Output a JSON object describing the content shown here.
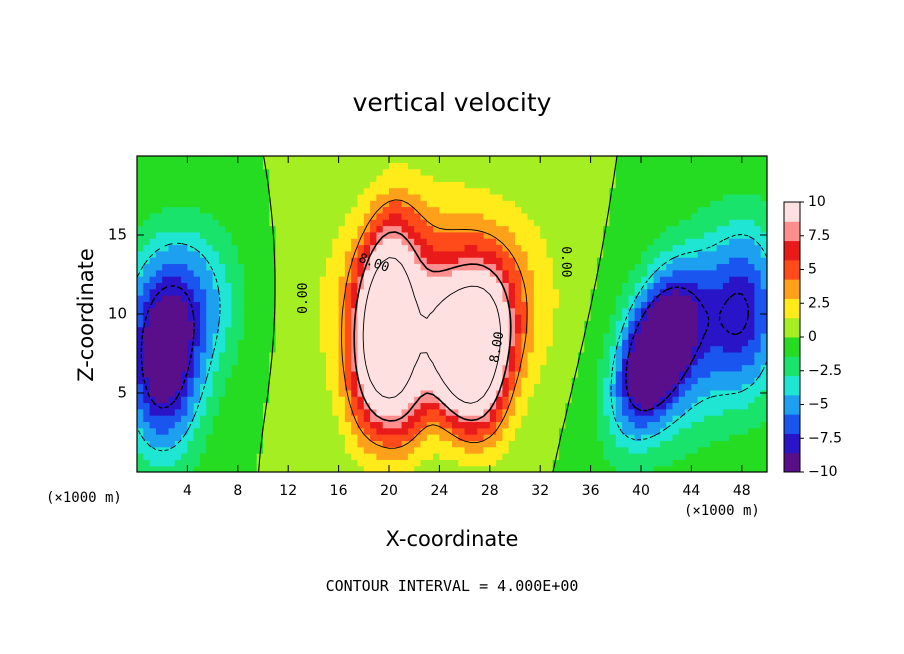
{
  "chart_data": {
    "type": "heatmap",
    "title": "vertical velocity",
    "xlabel": "X-coordinate",
    "ylabel": "Z-coordinate",
    "x_unit_label": "(×1000 m)",
    "footer": "CONTOUR INTERVAL = 4.000E+00",
    "xlim": [
      0,
      50
    ],
    "ylim": [
      0,
      20
    ],
    "x_ticks": [
      4,
      8,
      12,
      16,
      20,
      24,
      28,
      32,
      36,
      40,
      44,
      48
    ],
    "y_ticks": [
      5,
      10,
      15
    ],
    "colorbar": {
      "range": [
        -10,
        10
      ],
      "ticks": [
        10,
        7.5,
        5,
        2.5,
        0,
        -2.5,
        -5,
        -7.5,
        -10
      ],
      "tick_labels": [
        "10",
        "7.5",
        "5",
        "2.5",
        "0",
        "−2.5",
        "−5",
        "−7.5",
        "−10"
      ],
      "colors": [
        "#5a0f8a",
        "#2a14c8",
        "#1a55f0",
        "#1ea0f0",
        "#1ee6d2",
        "#19e36a",
        "#25dc22",
        "#a4ee22",
        "#ffea1a",
        "#ffa01a",
        "#ff4a1a",
        "#e81a1a",
        "#ff8e8e",
        "#ffe0e0"
      ]
    },
    "contour_labels": [
      "8.00",
      "8.00",
      "0.00",
      "0.00"
    ],
    "features": [
      {
        "kind": "updraft",
        "x": 19.5,
        "z": 9.5,
        "sx": 1.6,
        "sz": 4.2,
        "tilt": 0.12,
        "value": 13
      },
      {
        "kind": "updraft",
        "x": 21.0,
        "z": 5.5,
        "sx": 1.5,
        "sz": 3.0,
        "tilt": 0.0,
        "value": 6
      },
      {
        "kind": "updraft",
        "x": 25.8,
        "z": 6.8,
        "sx": 1.9,
        "sz": 3.0,
        "tilt": -0.2,
        "value": 12
      },
      {
        "kind": "updraft",
        "x": 27.5,
        "z": 9.0,
        "sx": 1.6,
        "sz": 2.6,
        "tilt": 0.0,
        "value": 8
      },
      {
        "kind": "updraft",
        "x": 22.5,
        "z": 10.5,
        "sx": 5.0,
        "sz": 4.5,
        "tilt": 0.0,
        "value": 5
      },
      {
        "kind": "updraft",
        "x": 28.0,
        "z": 11.0,
        "sx": 3.5,
        "sz": 4.0,
        "tilt": 0.0,
        "value": 3
      },
      {
        "kind": "downdraft",
        "x": 2.0,
        "z": 6.5,
        "sx": 2.2,
        "sz": 4.0,
        "tilt": 0.0,
        "value": -9
      },
      {
        "kind": "downdraft",
        "x": 4.0,
        "z": 11.0,
        "sx": 3.0,
        "sz": 3.5,
        "tilt": 0.0,
        "value": -5
      },
      {
        "kind": "downdraft",
        "x": 41.0,
        "z": 7.5,
        "sx": 1.8,
        "sz": 3.2,
        "tilt": 0.3,
        "value": -10
      },
      {
        "kind": "downdraft",
        "x": 44.0,
        "z": 8.5,
        "sx": 3.6,
        "sz": 4.5,
        "tilt": 0.3,
        "value": -6
      },
      {
        "kind": "downdraft",
        "x": 48.5,
        "z": 10.0,
        "sx": 2.0,
        "sz": 4.0,
        "tilt": 0.0,
        "value": -5
      }
    ]
  }
}
